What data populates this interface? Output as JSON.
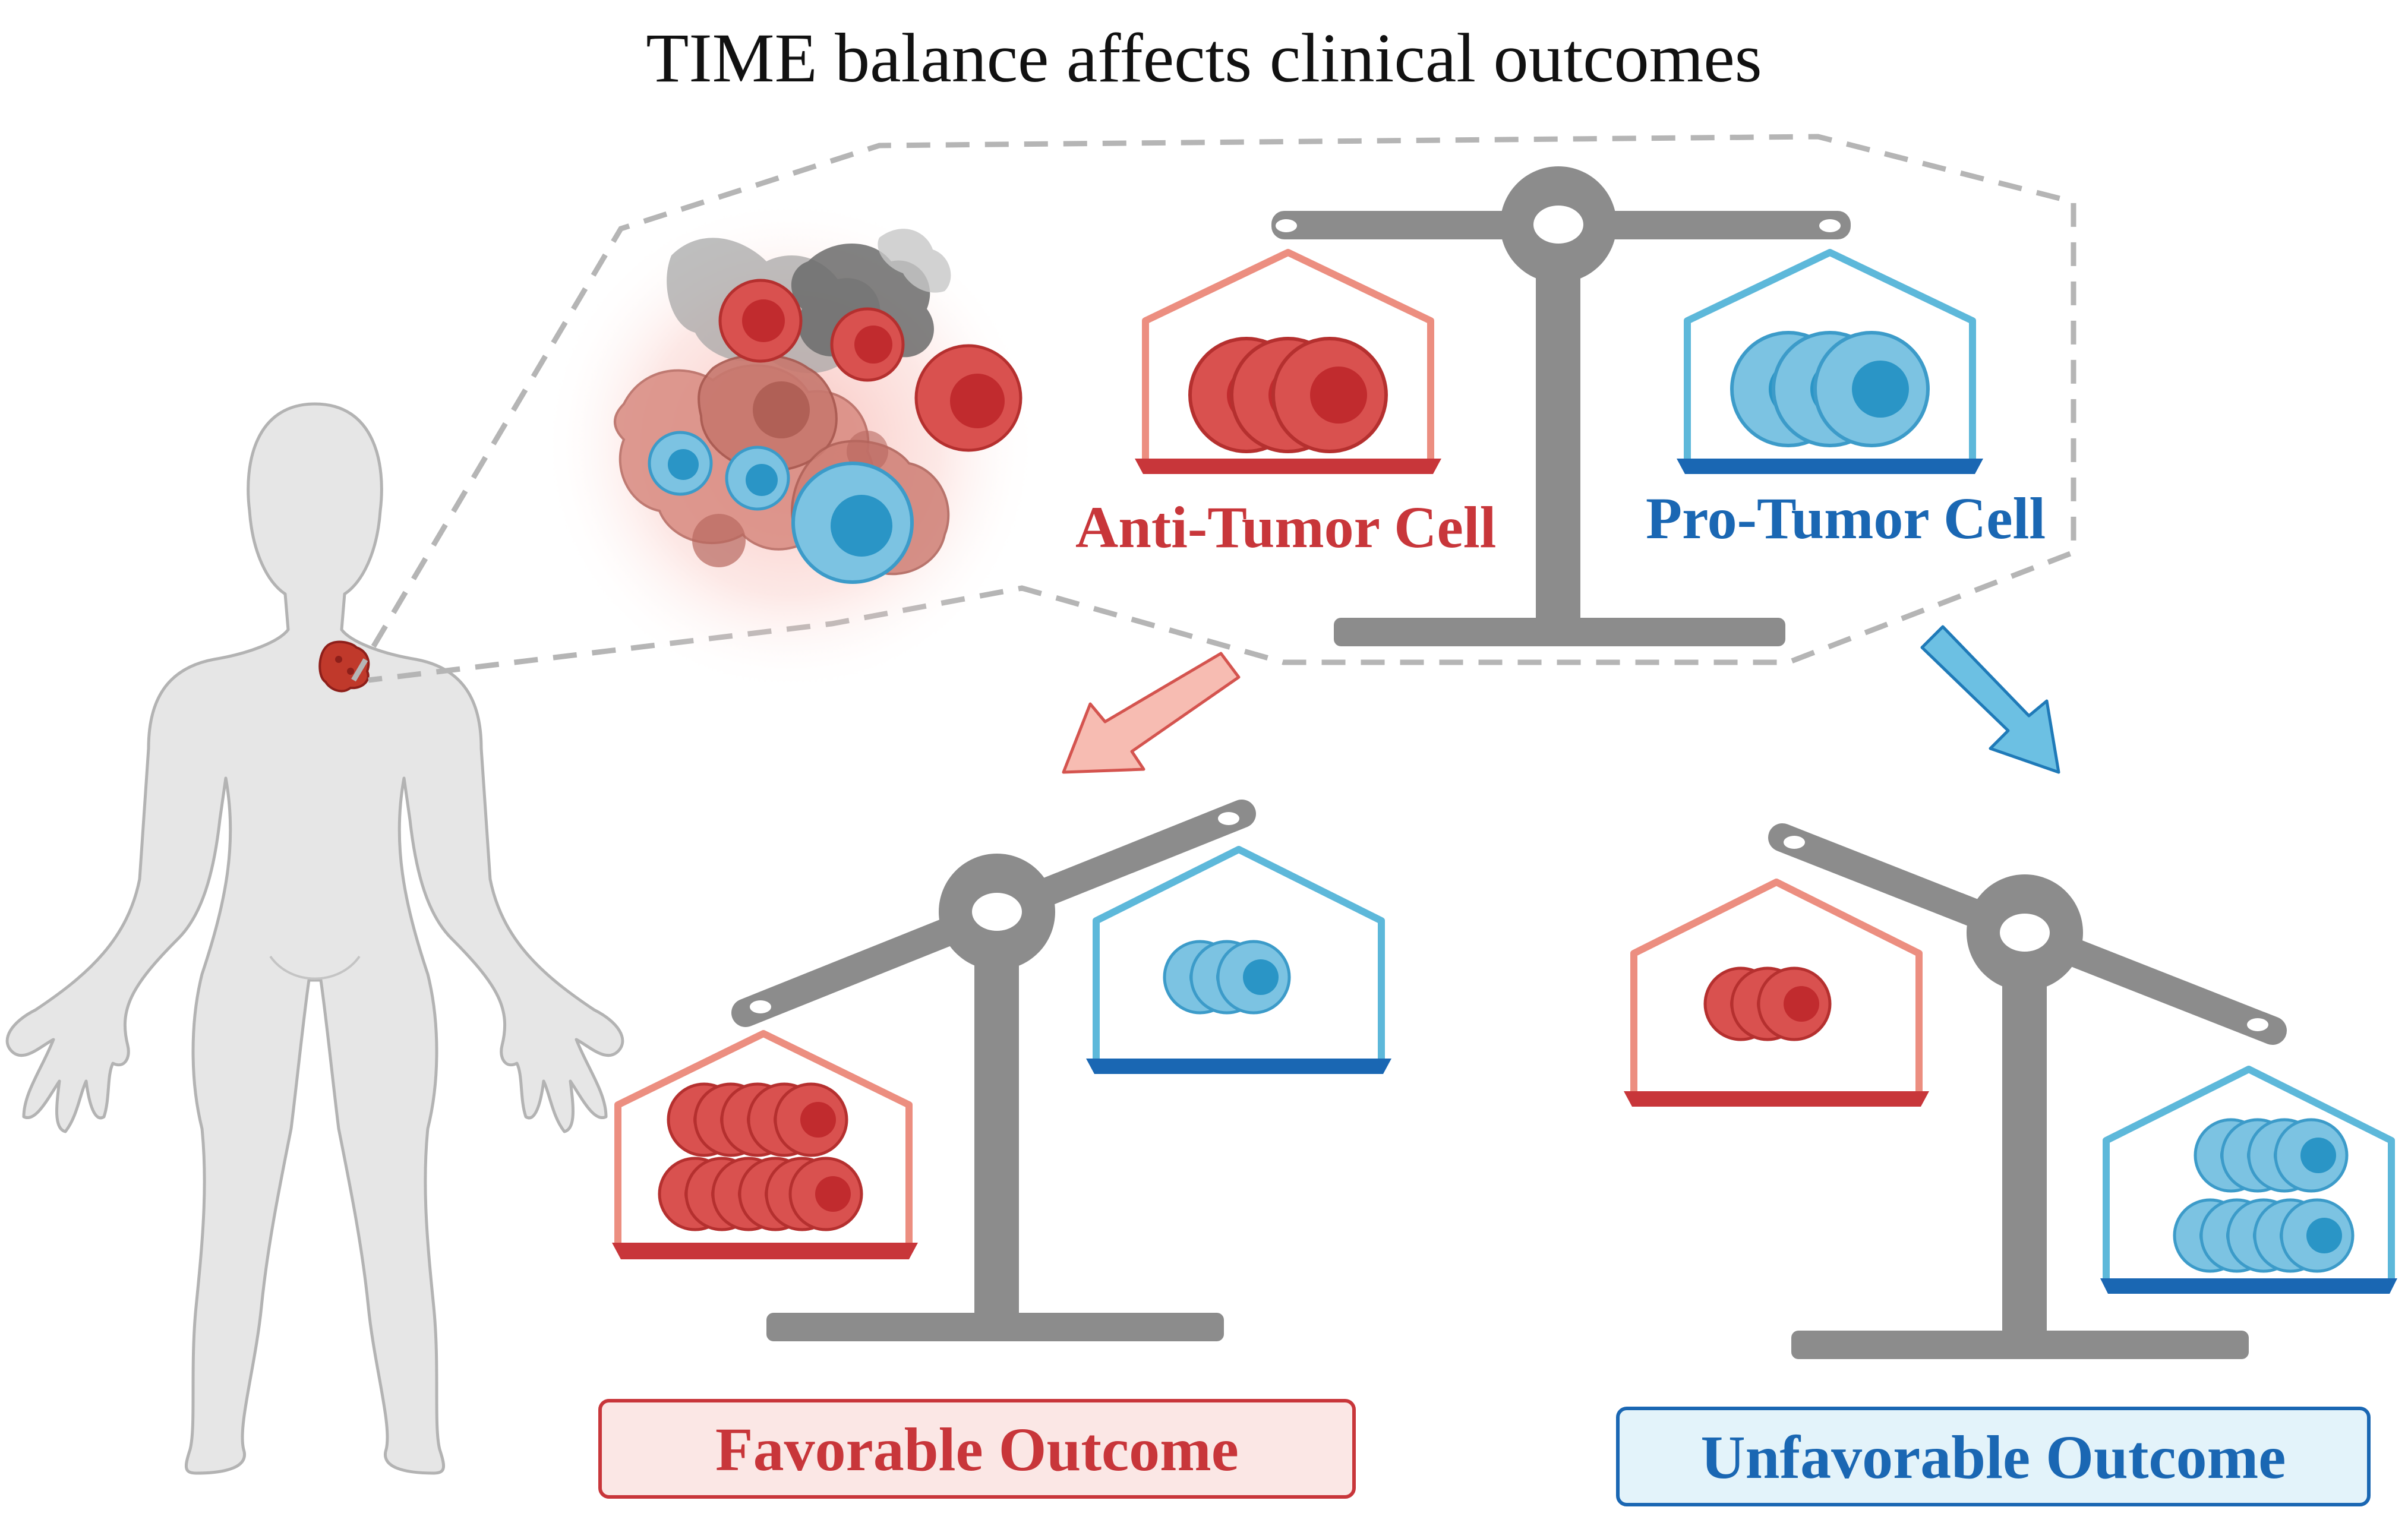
{
  "title": "TIME balance affects clinical outcomes",
  "labels": {
    "anti_tumor": "Anti-Tumor Cell",
    "pro_tumor": "Pro-Tumor Cell"
  },
  "outcomes": {
    "favorable": "Favorable Outcome",
    "unfavorable": "Unfavorable Outcome"
  },
  "colors": {
    "anti_red": "#c8363a",
    "anti_cell": "#d9514f",
    "anti_nucleus": "#c12b2e",
    "anti_house": "#ec8e80",
    "pro_blue": "#1a67b3",
    "pro_cell": "#7cc3e2",
    "pro_nucleus": "#2a95c6",
    "pro_house": "#5db8da",
    "scale_gray": "#8c8c8c",
    "body_gray": "#e6e6e6",
    "fav_bg": "#fbe7e5",
    "unfav_bg": "#e3f3fa"
  },
  "icons": [
    "human-body-icon",
    "tumor-icon",
    "balance-scale-icon",
    "arrow-icon",
    "cell-icon"
  ]
}
